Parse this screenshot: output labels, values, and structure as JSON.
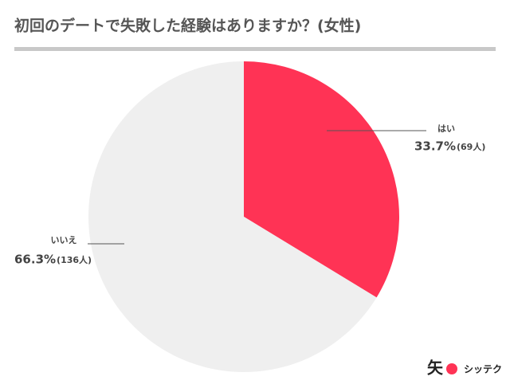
{
  "chart_data": {
    "type": "pie",
    "title": "初回のデートで失敗した経験はありますか？(女性)",
    "categories": [
      "はい",
      "いいえ"
    ],
    "values": [
      33.7,
      66.3
    ],
    "value_labels": [
      "33.7%",
      "66.3%"
    ],
    "counts": [
      69,
      136
    ],
    "count_labels": [
      "(69人)",
      "(136人)"
    ],
    "colors": [
      "#ff3355",
      "#efefef"
    ]
  },
  "logo": {
    "mark": "矢",
    "text": "シッテク"
  }
}
